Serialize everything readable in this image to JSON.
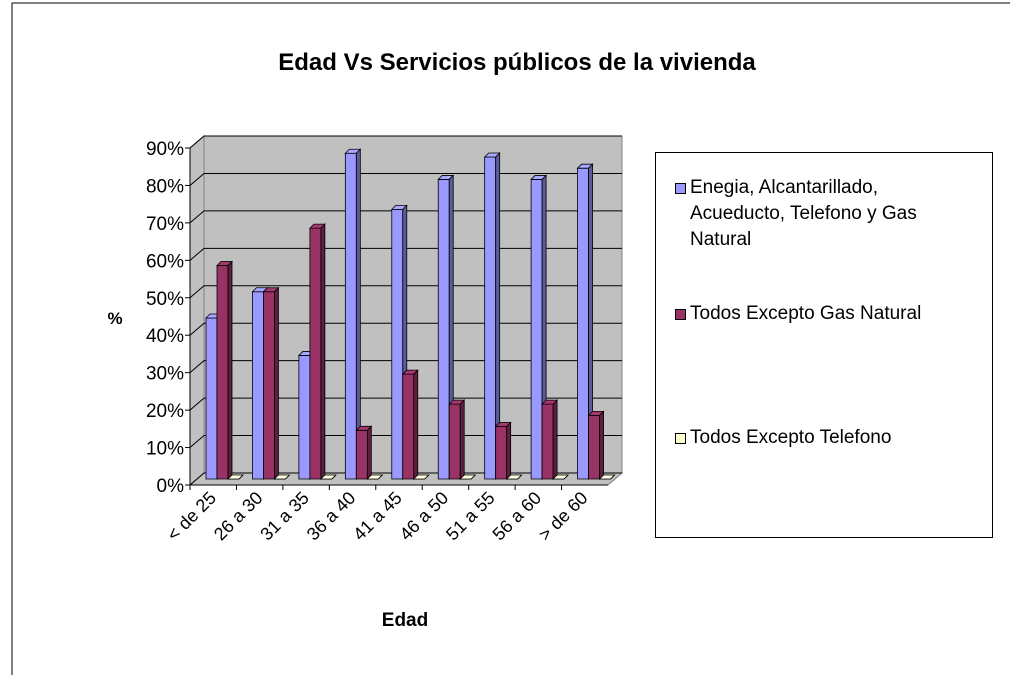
{
  "chart_data": {
    "type": "bar",
    "title": "Edad Vs Servicios públicos de la vivienda",
    "x_label": "Edad",
    "y_label": "%",
    "categories": [
      "< de 25",
      "26 a 30",
      "31 a 35",
      "36 a 40",
      "41 a 45",
      "46 a 50",
      "51 a 55",
      "56 a 60",
      "> de 60"
    ],
    "series": [
      {
        "name": "Enegia, Alcantarillado, Acueducto, Telefono y Gas Natural",
        "color": "#9999ff",
        "values": [
          43,
          50,
          33,
          87,
          72,
          80,
          86,
          80,
          83
        ]
      },
      {
        "name": "Todos Excepto Gas Natural",
        "color": "#993366",
        "values": [
          57,
          50,
          67,
          13,
          28,
          20,
          14,
          20,
          17
        ]
      },
      {
        "name": "Todos Excepto Telefono",
        "color": "#ffffcc",
        "values": [
          0,
          0,
          0,
          0,
          0,
          0,
          0,
          0,
          0
        ]
      }
    ],
    "ylim": [
      0,
      90
    ],
    "yticks": [
      {
        "value": 0,
        "label": "0%"
      },
      {
        "value": 10,
        "label": "10%"
      },
      {
        "value": 20,
        "label": "20%"
      },
      {
        "value": 30,
        "label": "30%"
      },
      {
        "value": 40,
        "label": "40%"
      },
      {
        "value": 50,
        "label": "50%"
      },
      {
        "value": 60,
        "label": "60%"
      },
      {
        "value": 70,
        "label": "70%"
      },
      {
        "value": 80,
        "label": "80%"
      },
      {
        "value": 90,
        "label": "90%"
      }
    ],
    "grid": true,
    "legend": "right"
  }
}
